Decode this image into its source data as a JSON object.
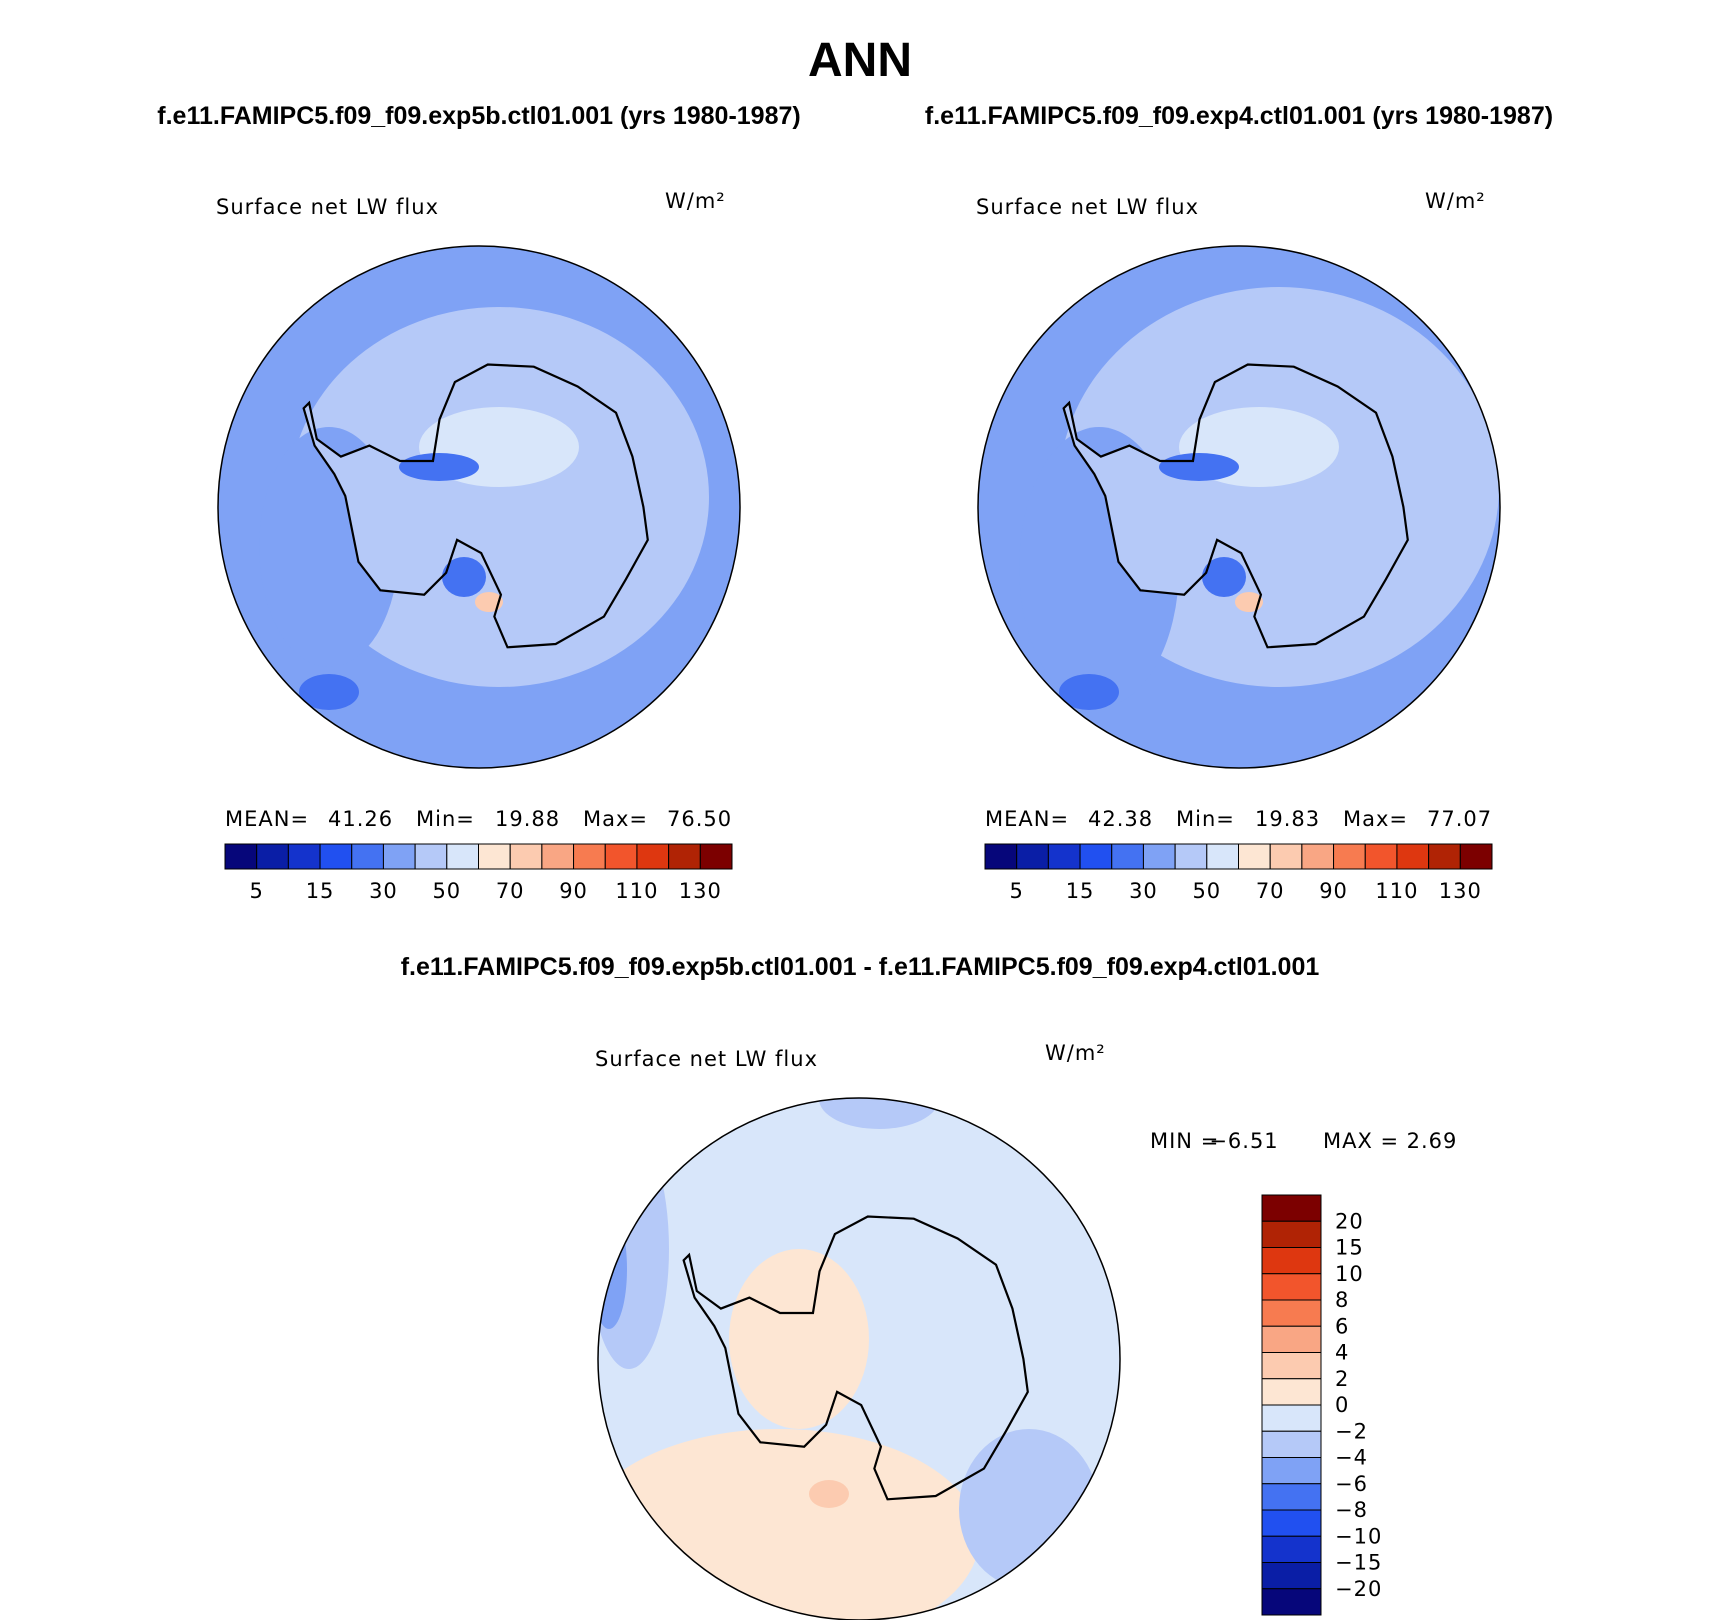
{
  "title": "ANN",
  "subtitle_left": "f.e11.FAMIPC5.f09_f09.exp5b.ctl01.001 (yrs 1980-1987)",
  "subtitle_right": "f.e11.FAMIPC5.f09_f09.exp4.ctl01.001 (yrs 1980-1987)",
  "panels": [
    {
      "title": "Surface net LW flux",
      "units": "W/m²",
      "stats": [
        "MEAN=",
        "41.26",
        "Min=",
        "19.88",
        "Max=",
        "76.50"
      ]
    },
    {
      "title": "Surface net LW flux",
      "units": "W/m²",
      "stats": [
        "MEAN=",
        "42.38",
        "Min=",
        "19.83",
        "Max=",
        "77.07"
      ]
    }
  ],
  "colorbar": {
    "colors": [
      "#06067a",
      "#0a1ea6",
      "#1433cc",
      "#2150f0",
      "#4472f2",
      "#7fa2f5",
      "#b5c9f8",
      "#d8e6fa",
      "#fde6d3",
      "#fccbb0",
      "#f9a684",
      "#f77b50",
      "#f2552c",
      "#de3710",
      "#b02305",
      "#7c0000"
    ],
    "labels": [
      "5",
      "15",
      "30",
      "50",
      "70",
      "90",
      "110",
      "130"
    ]
  },
  "diff": {
    "title": "f.e11.FAMIPC5.f09_f09.exp5b.ctl01.001 - f.e11.FAMIPC5.f09_f09.exp4.ctl01.001",
    "panel_title": "Surface net LW flux",
    "units": "W/m²",
    "stats": [
      "MIN =",
      "−6.51",
      "MAX =",
      "2.69"
    ],
    "colorbar": {
      "colors": [
        "#7c0000",
        "#b02305",
        "#de3710",
        "#f2552c",
        "#f77b50",
        "#f9a684",
        "#fccbb0",
        "#fde6d3",
        "#d8e6fa",
        "#b5c9f8",
        "#7fa2f5",
        "#4472f2",
        "#2150f0",
        "#1433cc",
        "#0a1ea6",
        "#06067a"
      ],
      "labels": [
        "20",
        "15",
        "10",
        "8",
        "6",
        "4",
        "2",
        "0",
        "−2",
        "−4",
        "−6",
        "−8",
        "−10",
        "−15",
        "−20"
      ]
    }
  }
}
